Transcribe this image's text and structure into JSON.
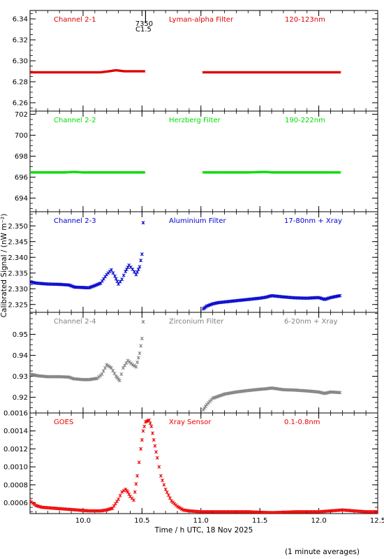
{
  "ylabel": "Calibrated Signal / (nW m⁻²)",
  "xlabel": "Time / h UTC, 18 Nov 2025",
  "footnote": "(1 minute averages)",
  "flare_marker": {
    "x": 10.53,
    "labels": [
      "7350",
      "C1.5"
    ]
  },
  "x_axis": {
    "range": [
      9.55,
      12.5
    ],
    "ticks": [
      10.0,
      10.5,
      11.0,
      11.5,
      12.0,
      12.5
    ],
    "tick_labels": [
      "10.0",
      "10.5",
      "11.0",
      "11.5",
      "12.0",
      "12.5"
    ]
  },
  "chart_data": [
    {
      "type": "scatter",
      "label": "Channel 2-1",
      "filter": "Lyman-alpha Filter",
      "band": "120-123nm",
      "color": "#dd0000",
      "ylim": [
        6.252,
        6.348
      ],
      "yticks": [
        6.26,
        6.28,
        6.3,
        6.32,
        6.34
      ],
      "ytick_labels": [
        "6.26",
        "6.28",
        "6.30",
        "6.32",
        "6.34"
      ],
      "series": [
        {
          "x": [
            9.55,
            9.65,
            9.75,
            9.85,
            9.95,
            10.05,
            10.15,
            10.22,
            10.28,
            10.35,
            10.42,
            10.48,
            10.52
          ],
          "y": [
            6.289,
            6.289,
            6.289,
            6.289,
            6.289,
            6.289,
            6.289,
            6.29,
            6.291,
            6.29,
            6.29,
            6.29,
            6.29
          ]
        },
        {
          "x": [
            11.02,
            11.15,
            11.3,
            11.45,
            11.6,
            11.75,
            11.9,
            12.05,
            12.18
          ],
          "y": [
            6.289,
            6.289,
            6.289,
            6.289,
            6.289,
            6.289,
            6.289,
            6.289,
            6.289
          ]
        }
      ]
    },
    {
      "type": "scatter",
      "label": "Channel 2-2",
      "filter": "Herzberg Filter",
      "band": "190-222nm",
      "color": "#00dd00",
      "ylim": [
        692.7,
        702.3
      ],
      "yticks": [
        694,
        696,
        698,
        700,
        702
      ],
      "ytick_labels": [
        "694",
        "696",
        "698",
        "700",
        "702"
      ],
      "series": [
        {
          "x": [
            9.55,
            9.7,
            9.85,
            9.92,
            10.0,
            10.15,
            10.3,
            10.45,
            10.52
          ],
          "y": [
            696.45,
            696.45,
            696.45,
            696.5,
            696.45,
            696.45,
            696.45,
            696.45,
            696.45
          ]
        },
        {
          "x": [
            11.02,
            11.2,
            11.4,
            11.55,
            11.6,
            11.75,
            11.9,
            12.05,
            12.18
          ],
          "y": [
            696.45,
            696.45,
            696.45,
            696.5,
            696.45,
            696.45,
            696.45,
            696.45,
            696.45
          ]
        }
      ]
    },
    {
      "type": "scatter",
      "label": "Channel 2-3",
      "filter": "Aluminium Filter",
      "band": "17-80nm + Xray",
      "color": "#0000cc",
      "ylim": [
        2.3225,
        2.3545
      ],
      "yticks": [
        2.325,
        2.33,
        2.335,
        2.34,
        2.345,
        2.35
      ],
      "ytick_labels": [
        "2.325",
        "2.330",
        "2.335",
        "2.340",
        "2.345",
        "2.350"
      ],
      "series": [
        {
          "x": [
            9.55,
            9.6,
            9.7,
            9.8,
            9.88,
            9.93,
            10.0,
            10.05,
            10.1,
            10.15,
            10.2,
            10.24,
            10.27,
            10.3,
            10.33,
            10.36,
            10.39,
            10.42,
            10.45,
            10.48,
            10.5,
            10.51
          ],
          "y": [
            2.3322,
            2.3318,
            2.3315,
            2.3314,
            2.3312,
            2.3305,
            2.3304,
            2.3303,
            2.331,
            2.3318,
            2.3345,
            2.336,
            2.334,
            2.3315,
            2.333,
            2.3355,
            2.3375,
            2.3362,
            2.3345,
            2.337,
            2.341,
            2.351
          ]
        },
        {
          "x": [
            11.02,
            11.05,
            11.1,
            11.15,
            11.2,
            11.3,
            11.4,
            11.5,
            11.55,
            11.6,
            11.7,
            11.8,
            11.9,
            12.0,
            12.05,
            12.1,
            12.18
          ],
          "y": [
            2.3236,
            2.3245,
            2.3252,
            2.3256,
            2.3258,
            2.3262,
            2.3266,
            2.327,
            2.3273,
            2.3278,
            2.3274,
            2.3271,
            2.327,
            2.3272,
            2.3266,
            2.3272,
            2.3278
          ]
        }
      ]
    },
    {
      "type": "scatter",
      "label": "Channel 2-4",
      "filter": "Zirconium Filter",
      "band": "6-20nm + Xray",
      "color": "#808080",
      "ylim": [
        0.9125,
        0.9605
      ],
      "yticks": [
        0.92,
        0.93,
        0.94,
        0.95
      ],
      "ytick_labels": [
        "0.92",
        "0.93",
        "0.94",
        "0.95"
      ],
      "series": [
        {
          "x": [
            9.55,
            9.62,
            9.7,
            9.8,
            9.88,
            9.92,
            10.0,
            10.05,
            10.12,
            10.16,
            10.2,
            10.24,
            10.28,
            10.31,
            10.34,
            10.38,
            10.42,
            10.45,
            10.48,
            10.5,
            10.51
          ],
          "y": [
            0.931,
            0.9302,
            0.9298,
            0.9298,
            0.9296,
            0.9288,
            0.9284,
            0.9284,
            0.929,
            0.931,
            0.9355,
            0.934,
            0.93,
            0.928,
            0.934,
            0.9375,
            0.9355,
            0.9345,
            0.941,
            0.948,
            0.956
          ]
        },
        {
          "x": [
            11.02,
            11.05,
            11.1,
            11.2,
            11.3,
            11.4,
            11.5,
            11.55,
            11.6,
            11.7,
            11.8,
            11.9,
            12.0,
            12.05,
            12.1,
            12.18
          ],
          "y": [
            0.914,
            0.9165,
            0.9195,
            0.9215,
            0.9225,
            0.9232,
            0.9238,
            0.924,
            0.9244,
            0.9236,
            0.9234,
            0.923,
            0.9225,
            0.9218,
            0.9225,
            0.9222
          ]
        }
      ]
    },
    {
      "type": "scatter",
      "label": "GOES",
      "filter": "Xray Sensor",
      "band": "0.1-0.8nm",
      "color": "#ee0000",
      "ylim": [
        0.00048,
        0.0016
      ],
      "yticks": [
        0.0006,
        0.0008,
        0.001,
        0.0012,
        0.0014,
        0.0016
      ],
      "ytick_labels": [
        "0.0006",
        "0.0008",
        "0.0010",
        "0.0012",
        "0.0014",
        "0.0016"
      ],
      "series": [
        {
          "x": [
            9.55,
            9.6,
            9.65,
            9.75,
            9.85,
            9.95,
            10.05,
            10.15,
            10.2,
            10.25,
            10.3,
            10.33,
            10.36,
            10.38,
            10.4,
            10.43,
            10.46,
            10.49,
            10.51,
            10.53,
            10.56,
            10.58,
            10.6,
            10.63,
            10.66,
            10.7,
            10.75,
            10.8,
            10.85,
            10.9,
            11.0,
            11.2,
            11.4,
            11.6,
            11.8,
            12.0,
            12.2,
            12.3,
            12.4,
            12.5
          ],
          "y": [
            0.00062,
            0.00057,
            0.00055,
            0.00054,
            0.00053,
            0.00052,
            0.00051,
            0.00051,
            0.00052,
            0.00054,
            0.00064,
            0.00072,
            0.00075,
            0.00072,
            0.00067,
            0.00063,
            0.0009,
            0.0012,
            0.0014,
            0.0015,
            0.00152,
            0.00145,
            0.0013,
            0.0011,
            0.0009,
            0.00075,
            0.00062,
            0.00056,
            0.00052,
            0.00051,
            0.0005,
            0.0005,
            0.0005,
            0.00049,
            0.0005,
            0.0005,
            0.00052,
            0.00051,
            0.0005,
            0.0005
          ]
        }
      ]
    }
  ]
}
